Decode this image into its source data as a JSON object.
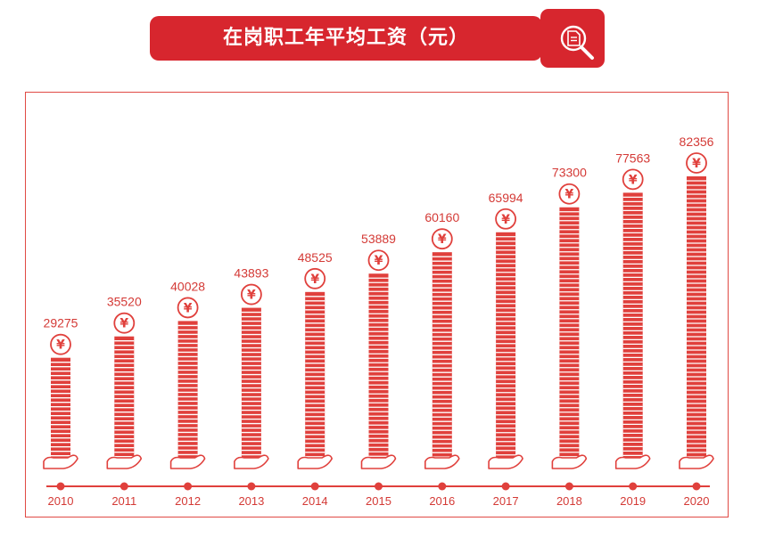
{
  "chart_data": {
    "type": "bar",
    "title": "在岗职工年平均工资（元）",
    "categories": [
      "2010",
      "2011",
      "2012",
      "2013",
      "2014",
      "2015",
      "2016",
      "2017",
      "2018",
      "2019",
      "2020"
    ],
    "values": [
      29275,
      35520,
      40028,
      43893,
      48525,
      53889,
      60160,
      65994,
      73300,
      77563,
      82356
    ],
    "xlabel": "",
    "ylabel": "",
    "currency_symbol": "¥",
    "grid": false,
    "legend": "none"
  },
  "colors": {
    "accent": "#d7262e",
    "bar": "#e0403c",
    "text": "#d43a36",
    "frame": "#e04a44"
  },
  "icons": [
    "search-document-icon",
    "yen-coin-icon",
    "hand-icon"
  ]
}
